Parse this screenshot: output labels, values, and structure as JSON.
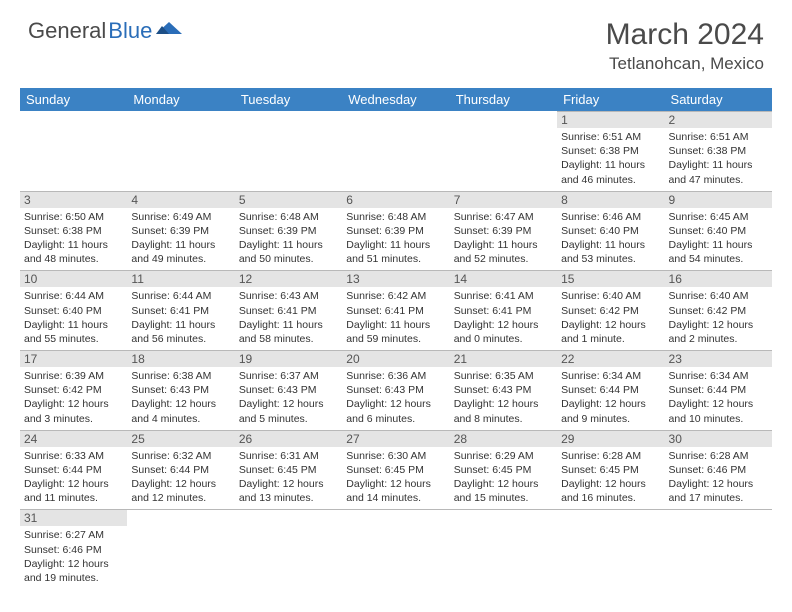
{
  "logo": {
    "part1": "General",
    "part2": "Blue"
  },
  "title": "March 2024",
  "location": "Tetlanohcan, Mexico",
  "colors": {
    "header_bg": "#3b82c4",
    "header_fg": "#ffffff",
    "daynum_bg": "#e4e4e4",
    "border": "#b8b8b8",
    "logo_accent": "#2a6db8"
  },
  "weekdays": [
    "Sunday",
    "Monday",
    "Tuesday",
    "Wednesday",
    "Thursday",
    "Friday",
    "Saturday"
  ],
  "weeks": [
    [
      null,
      null,
      null,
      null,
      null,
      {
        "day": "1",
        "sunrise": "Sunrise: 6:51 AM",
        "sunset": "Sunset: 6:38 PM",
        "daylight": "Daylight: 11 hours and 46 minutes."
      },
      {
        "day": "2",
        "sunrise": "Sunrise: 6:51 AM",
        "sunset": "Sunset: 6:38 PM",
        "daylight": "Daylight: 11 hours and 47 minutes."
      }
    ],
    [
      {
        "day": "3",
        "sunrise": "Sunrise: 6:50 AM",
        "sunset": "Sunset: 6:38 PM",
        "daylight": "Daylight: 11 hours and 48 minutes."
      },
      {
        "day": "4",
        "sunrise": "Sunrise: 6:49 AM",
        "sunset": "Sunset: 6:39 PM",
        "daylight": "Daylight: 11 hours and 49 minutes."
      },
      {
        "day": "5",
        "sunrise": "Sunrise: 6:48 AM",
        "sunset": "Sunset: 6:39 PM",
        "daylight": "Daylight: 11 hours and 50 minutes."
      },
      {
        "day": "6",
        "sunrise": "Sunrise: 6:48 AM",
        "sunset": "Sunset: 6:39 PM",
        "daylight": "Daylight: 11 hours and 51 minutes."
      },
      {
        "day": "7",
        "sunrise": "Sunrise: 6:47 AM",
        "sunset": "Sunset: 6:39 PM",
        "daylight": "Daylight: 11 hours and 52 minutes."
      },
      {
        "day": "8",
        "sunrise": "Sunrise: 6:46 AM",
        "sunset": "Sunset: 6:40 PM",
        "daylight": "Daylight: 11 hours and 53 minutes."
      },
      {
        "day": "9",
        "sunrise": "Sunrise: 6:45 AM",
        "sunset": "Sunset: 6:40 PM",
        "daylight": "Daylight: 11 hours and 54 minutes."
      }
    ],
    [
      {
        "day": "10",
        "sunrise": "Sunrise: 6:44 AM",
        "sunset": "Sunset: 6:40 PM",
        "daylight": "Daylight: 11 hours and 55 minutes."
      },
      {
        "day": "11",
        "sunrise": "Sunrise: 6:44 AM",
        "sunset": "Sunset: 6:41 PM",
        "daylight": "Daylight: 11 hours and 56 minutes."
      },
      {
        "day": "12",
        "sunrise": "Sunrise: 6:43 AM",
        "sunset": "Sunset: 6:41 PM",
        "daylight": "Daylight: 11 hours and 58 minutes."
      },
      {
        "day": "13",
        "sunrise": "Sunrise: 6:42 AM",
        "sunset": "Sunset: 6:41 PM",
        "daylight": "Daylight: 11 hours and 59 minutes."
      },
      {
        "day": "14",
        "sunrise": "Sunrise: 6:41 AM",
        "sunset": "Sunset: 6:41 PM",
        "daylight": "Daylight: 12 hours and 0 minutes."
      },
      {
        "day": "15",
        "sunrise": "Sunrise: 6:40 AM",
        "sunset": "Sunset: 6:42 PM",
        "daylight": "Daylight: 12 hours and 1 minute."
      },
      {
        "day": "16",
        "sunrise": "Sunrise: 6:40 AM",
        "sunset": "Sunset: 6:42 PM",
        "daylight": "Daylight: 12 hours and 2 minutes."
      }
    ],
    [
      {
        "day": "17",
        "sunrise": "Sunrise: 6:39 AM",
        "sunset": "Sunset: 6:42 PM",
        "daylight": "Daylight: 12 hours and 3 minutes."
      },
      {
        "day": "18",
        "sunrise": "Sunrise: 6:38 AM",
        "sunset": "Sunset: 6:43 PM",
        "daylight": "Daylight: 12 hours and 4 minutes."
      },
      {
        "day": "19",
        "sunrise": "Sunrise: 6:37 AM",
        "sunset": "Sunset: 6:43 PM",
        "daylight": "Daylight: 12 hours and 5 minutes."
      },
      {
        "day": "20",
        "sunrise": "Sunrise: 6:36 AM",
        "sunset": "Sunset: 6:43 PM",
        "daylight": "Daylight: 12 hours and 6 minutes."
      },
      {
        "day": "21",
        "sunrise": "Sunrise: 6:35 AM",
        "sunset": "Sunset: 6:43 PM",
        "daylight": "Daylight: 12 hours and 8 minutes."
      },
      {
        "day": "22",
        "sunrise": "Sunrise: 6:34 AM",
        "sunset": "Sunset: 6:44 PM",
        "daylight": "Daylight: 12 hours and 9 minutes."
      },
      {
        "day": "23",
        "sunrise": "Sunrise: 6:34 AM",
        "sunset": "Sunset: 6:44 PM",
        "daylight": "Daylight: 12 hours and 10 minutes."
      }
    ],
    [
      {
        "day": "24",
        "sunrise": "Sunrise: 6:33 AM",
        "sunset": "Sunset: 6:44 PM",
        "daylight": "Daylight: 12 hours and 11 minutes."
      },
      {
        "day": "25",
        "sunrise": "Sunrise: 6:32 AM",
        "sunset": "Sunset: 6:44 PM",
        "daylight": "Daylight: 12 hours and 12 minutes."
      },
      {
        "day": "26",
        "sunrise": "Sunrise: 6:31 AM",
        "sunset": "Sunset: 6:45 PM",
        "daylight": "Daylight: 12 hours and 13 minutes."
      },
      {
        "day": "27",
        "sunrise": "Sunrise: 6:30 AM",
        "sunset": "Sunset: 6:45 PM",
        "daylight": "Daylight: 12 hours and 14 minutes."
      },
      {
        "day": "28",
        "sunrise": "Sunrise: 6:29 AM",
        "sunset": "Sunset: 6:45 PM",
        "daylight": "Daylight: 12 hours and 15 minutes."
      },
      {
        "day": "29",
        "sunrise": "Sunrise: 6:28 AM",
        "sunset": "Sunset: 6:45 PM",
        "daylight": "Daylight: 12 hours and 16 minutes."
      },
      {
        "day": "30",
        "sunrise": "Sunrise: 6:28 AM",
        "sunset": "Sunset: 6:46 PM",
        "daylight": "Daylight: 12 hours and 17 minutes."
      }
    ],
    [
      {
        "day": "31",
        "sunrise": "Sunrise: 6:27 AM",
        "sunset": "Sunset: 6:46 PM",
        "daylight": "Daylight: 12 hours and 19 minutes."
      },
      null,
      null,
      null,
      null,
      null,
      null
    ]
  ]
}
